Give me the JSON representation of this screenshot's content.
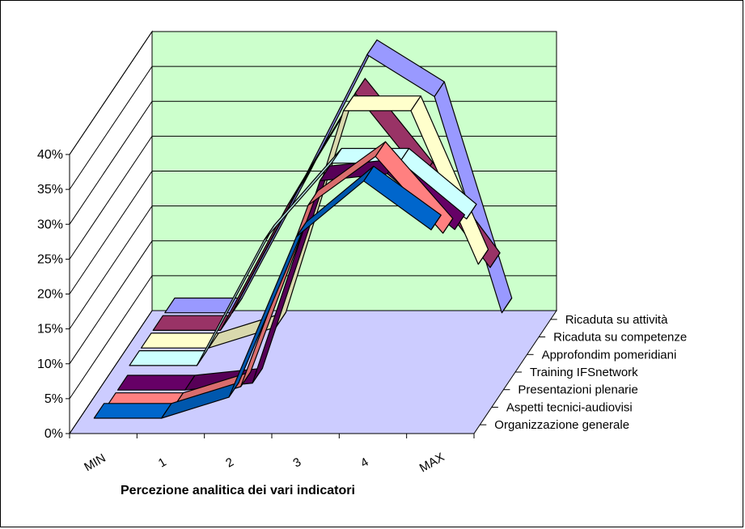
{
  "colors": {
    "back_wall": "#ccffcc",
    "floor": "#ccccff",
    "grid": "#000000"
  },
  "chart_data": {
    "type": "line",
    "subtype": "3d-ribbon",
    "title": "",
    "xlabel": "Percezione analitica dei vari indicatori",
    "ylabel": "",
    "categories": [
      "MIN",
      "1",
      "2",
      "3",
      "4",
      "MAX"
    ],
    "y_ticks": [
      "0%",
      "5%",
      "10%",
      "15%",
      "20%",
      "25%",
      "30%",
      "35%",
      "40%"
    ],
    "ylim": [
      0,
      40
    ],
    "unit": "%",
    "grid": true,
    "series": [
      {
        "name": "Organizzazione generale",
        "color": "#0066cc",
        "values": [
          2,
          2,
          5,
          28,
          36,
          29
        ]
      },
      {
        "name": "Aspetti tecnici-audiovisi",
        "color": "#ff8080",
        "values": [
          1,
          1,
          4,
          30,
          37,
          26
        ]
      },
      {
        "name": "Presentazioni plenarie",
        "color": "#660066",
        "values": [
          1,
          1,
          2,
          31,
          32,
          24
        ]
      },
      {
        "name": "Training IFSnetwork",
        "color": "#ccffff",
        "values": [
          2,
          2,
          20,
          31,
          31,
          23
        ]
      },
      {
        "name": "Approfondim pomeridiani",
        "color": "#ffffcc",
        "values": [
          2,
          2,
          5,
          36,
          36,
          14
        ]
      },
      {
        "name": "Ricaduta su competenze",
        "color": "#993366",
        "values": [
          2,
          2,
          20,
          36,
          24,
          11
        ]
      },
      {
        "name": "Ricaduta su attività",
        "color": "#9999ff",
        "values": [
          2,
          2,
          20,
          39,
          33,
          2
        ]
      }
    ]
  }
}
